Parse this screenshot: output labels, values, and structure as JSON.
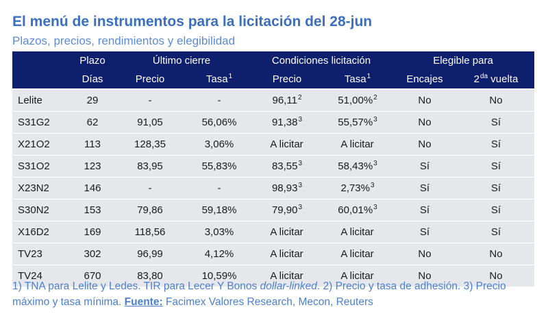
{
  "title": "El menú de instrumentos para la licitación del 28-jun",
  "subtitle": "Plazos, precios, rendimientos y elegibilidad",
  "header": {
    "row1": {
      "plazo": "Plazo",
      "ultimo_cierre": "Último cierre",
      "condiciones": "Condiciones licitación",
      "elegible": "Elegible para"
    },
    "row2": {
      "dias": "Días",
      "precio_uc": "Precio",
      "tasa_uc": "Tasa",
      "tasa_uc_sup": "1",
      "precio_cl": "Precio",
      "tasa_cl": "Tasa",
      "tasa_cl_sup": "1",
      "encajes": "Encajes",
      "vuelta_num": "2",
      "vuelta_sup": "da",
      "vuelta_txt": " vuelta"
    }
  },
  "rows": [
    {
      "name": "Lelite",
      "dias": "29",
      "precio_uc": "-",
      "tasa_uc": "-",
      "precio_cl": "96,11",
      "precio_cl_sup": "2",
      "tasa_cl": "51,00%",
      "tasa_cl_sup": "2",
      "encajes": "No",
      "vuelta": "No"
    },
    {
      "name": "S31G2",
      "dias": "62",
      "precio_uc": "91,05",
      "tasa_uc": "56,06%",
      "precio_cl": "91,38",
      "precio_cl_sup": "3",
      "tasa_cl": "55,57%",
      "tasa_cl_sup": "3",
      "encajes": "No",
      "vuelta": "Sí"
    },
    {
      "name": "X21O2",
      "dias": "113",
      "precio_uc": "128,35",
      "tasa_uc": "3,06%",
      "precio_cl": "A licitar",
      "precio_cl_sup": "",
      "tasa_cl": "A licitar",
      "tasa_cl_sup": "",
      "encajes": "No",
      "vuelta": "Sí"
    },
    {
      "name": "S31O2",
      "dias": "123",
      "precio_uc": "83,95",
      "tasa_uc": "55,83%",
      "precio_cl": "83,55",
      "precio_cl_sup": "3",
      "tasa_cl": "58,43%",
      "tasa_cl_sup": "3",
      "encajes": "Sí",
      "vuelta": "Sí"
    },
    {
      "name": "X23N2",
      "dias": "146",
      "precio_uc": "-",
      "tasa_uc": "-",
      "precio_cl": "98,93",
      "precio_cl_sup": "3",
      "tasa_cl": "2,73%",
      "tasa_cl_sup": "3",
      "encajes": "Sí",
      "vuelta": "Sí"
    },
    {
      "name": "S30N2",
      "dias": "153",
      "precio_uc": "79,86",
      "tasa_uc": "59,18%",
      "precio_cl": "79,90",
      "precio_cl_sup": "3",
      "tasa_cl": "60,01%",
      "tasa_cl_sup": "3",
      "encajes": "Sí",
      "vuelta": "Sí"
    },
    {
      "name": "X16D2",
      "dias": "169",
      "precio_uc": "118,56",
      "tasa_uc": "3,03%",
      "precio_cl": "A licitar",
      "precio_cl_sup": "",
      "tasa_cl": "A licitar",
      "tasa_cl_sup": "",
      "encajes": "Sí",
      "vuelta": "Sí"
    },
    {
      "name": "TV23",
      "dias": "302",
      "precio_uc": "96,99",
      "tasa_uc": "4,12%",
      "precio_cl": "A licitar",
      "precio_cl_sup": "",
      "tasa_cl": "A licitar",
      "tasa_cl_sup": "",
      "encajes": "No",
      "vuelta": "No"
    },
    {
      "name": "TV24",
      "dias": "670",
      "precio_uc": "83,80",
      "tasa_uc": "10,59%",
      "precio_cl": "A licitar",
      "precio_cl_sup": "",
      "tasa_cl": "A licitar",
      "tasa_cl_sup": "",
      "encajes": "No",
      "vuelta": "No"
    }
  ],
  "notes": {
    "part1": "1) TNA para Lelite y Ledes. TIR para Lecer Y Bonos ",
    "italic": "dollar-linked",
    "part2": ". 2) Precio y tasa de adhesión. 3) Precio máximo y tasa mínima. ",
    "source_label": "Fuente:",
    "source_text": " Facimex Valores Research, Mecon, Reuters"
  },
  "colors": {
    "title": "#3a6fc0",
    "header_bg": "#0e1f6e",
    "row_bg": "#e6e7ea",
    "notes": "#4a7fd0"
  }
}
